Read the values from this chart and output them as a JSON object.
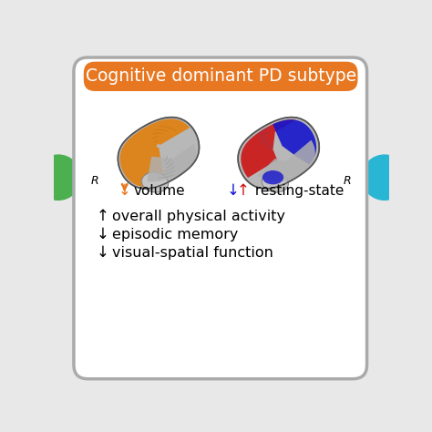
{
  "title": "Cognitive dominant PD subtype",
  "title_color": "#ffffff",
  "title_bg_color": "#E87722",
  "outer_box_edge_color": "#aaaaaa",
  "outer_box_bg": "#ffffff",
  "page_bg": "#e8e8e8",
  "left_circle_color": "#4CAF50",
  "right_circle_color": "#29B6D5",
  "volume_arrow_color": "#E87722",
  "resting_blue_color": "#1010CC",
  "resting_red_color": "#CC1010",
  "bullet_items": [
    [
      "↑",
      "overall physical activity"
    ],
    [
      "↓",
      "episodic memory"
    ],
    [
      "↓",
      "visual-spatial function"
    ]
  ],
  "R_label": "R",
  "figsize": [
    4.74,
    4.74
  ],
  "dpi": 100
}
